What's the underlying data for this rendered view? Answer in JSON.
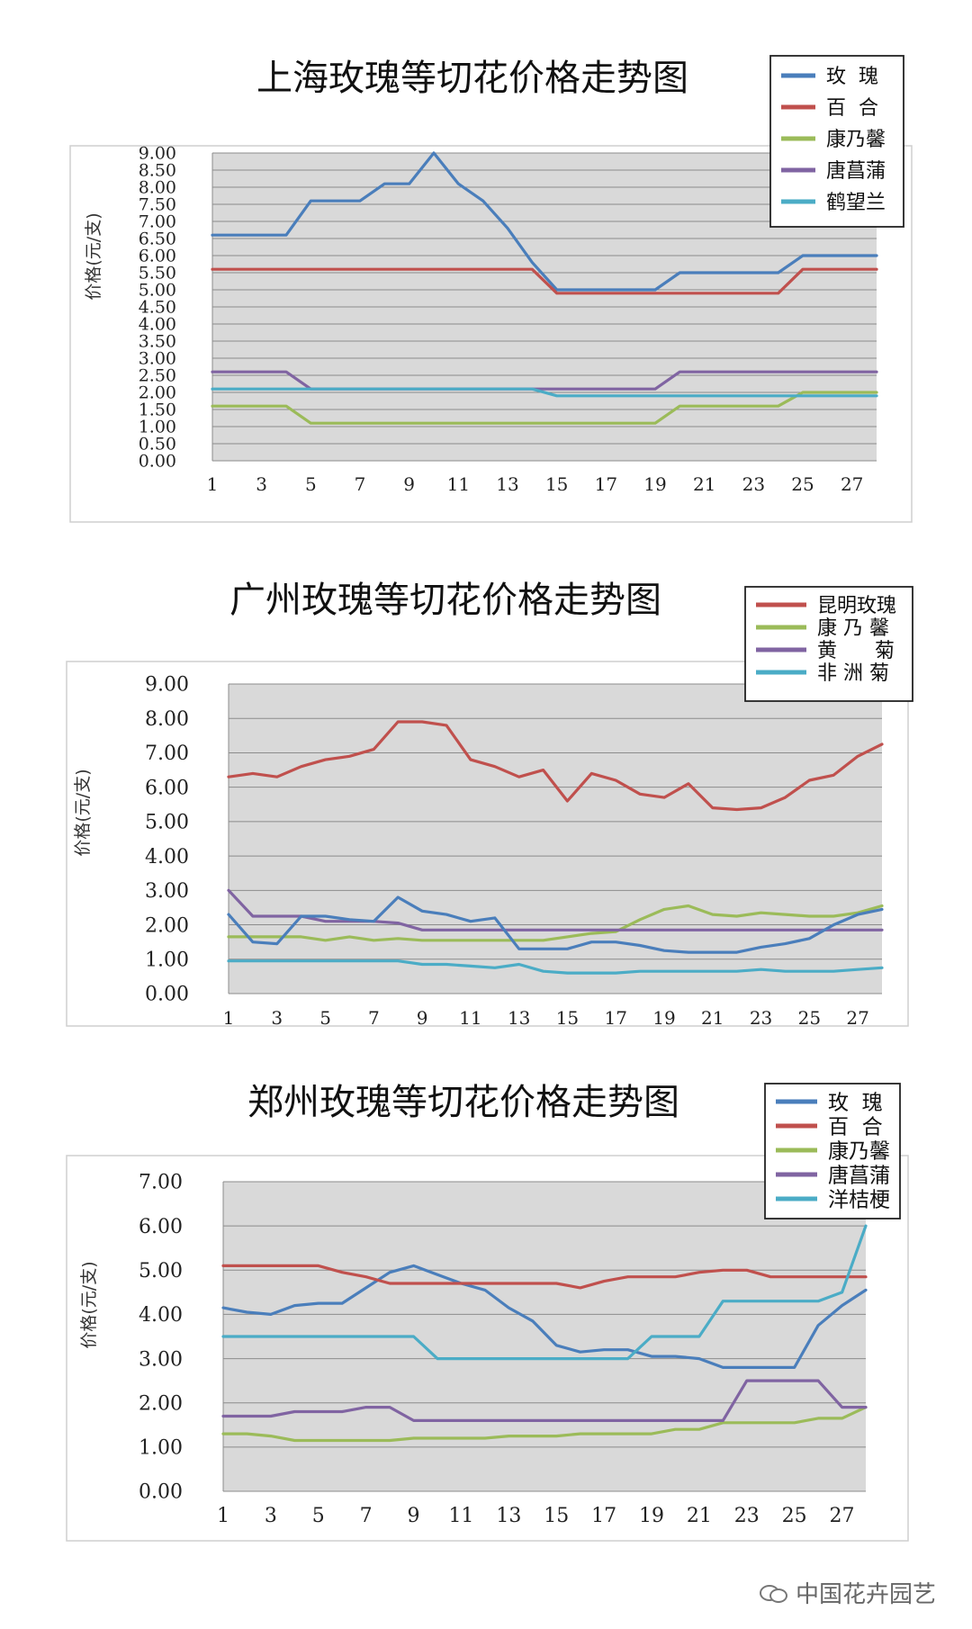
{
  "watermark": {
    "text": "中国花卉园艺",
    "icon": "wechat-icon"
  },
  "chart_data": [
    {
      "type": "line",
      "title": "上海玫瑰等切花价格走势图",
      "ylabel": "价格(元/支)",
      "xlabel": "",
      "ylim": [
        0,
        9
      ],
      "yticks": [
        "0.00",
        "0.50",
        "1.00",
        "1.50",
        "2.00",
        "2.50",
        "3.00",
        "3.50",
        "4.00",
        "4.50",
        "5.00",
        "5.50",
        "6.00",
        "6.50",
        "7.00",
        "7.50",
        "8.00",
        "8.50",
        "9.00"
      ],
      "x": [
        1,
        2,
        3,
        4,
        5,
        6,
        7,
        8,
        9,
        10,
        11,
        12,
        13,
        14,
        15,
        16,
        17,
        18,
        19,
        20,
        21,
        22,
        23,
        24,
        25,
        26,
        27,
        28
      ],
      "xticks": [
        "1",
        "3",
        "5",
        "7",
        "9",
        "11",
        "13",
        "15",
        "17",
        "19",
        "21",
        "23",
        "25",
        "27"
      ],
      "grid": true,
      "legend_position": "top-right",
      "legend_spaced": true,
      "series": [
        {
          "name": "玫  瑰",
          "color": "#4a7ebb",
          "values": [
            6.6,
            6.6,
            6.6,
            6.6,
            7.6,
            7.6,
            7.6,
            8.1,
            8.1,
            9.0,
            8.1,
            7.6,
            6.8,
            5.8,
            5.0,
            5.0,
            5.0,
            5.0,
            5.0,
            5.5,
            5.5,
            5.5,
            5.5,
            5.5,
            6.0,
            6.0,
            6.0,
            6.0
          ]
        },
        {
          "name": "百  合",
          "color": "#c0504d",
          "values": [
            5.6,
            5.6,
            5.6,
            5.6,
            5.6,
            5.6,
            5.6,
            5.6,
            5.6,
            5.6,
            5.6,
            5.6,
            5.6,
            5.6,
            4.9,
            4.9,
            4.9,
            4.9,
            4.9,
            4.9,
            4.9,
            4.9,
            4.9,
            4.9,
            5.6,
            5.6,
            5.6,
            5.6
          ]
        },
        {
          "name": "康乃馨",
          "color": "#9bbb59",
          "values": [
            1.6,
            1.6,
            1.6,
            1.6,
            1.1,
            1.1,
            1.1,
            1.1,
            1.1,
            1.1,
            1.1,
            1.1,
            1.1,
            1.1,
            1.1,
            1.1,
            1.1,
            1.1,
            1.1,
            1.6,
            1.6,
            1.6,
            1.6,
            1.6,
            2.0,
            2.0,
            2.0,
            2.0
          ]
        },
        {
          "name": "唐菖蒲",
          "color": "#8064a2",
          "values": [
            2.6,
            2.6,
            2.6,
            2.6,
            2.1,
            2.1,
            2.1,
            2.1,
            2.1,
            2.1,
            2.1,
            2.1,
            2.1,
            2.1,
            2.1,
            2.1,
            2.1,
            2.1,
            2.1,
            2.6,
            2.6,
            2.6,
            2.6,
            2.6,
            2.6,
            2.6,
            2.6,
            2.6
          ]
        },
        {
          "name": "鹤望兰",
          "color": "#4bacc6",
          "values": [
            2.1,
            2.1,
            2.1,
            2.1,
            2.1,
            2.1,
            2.1,
            2.1,
            2.1,
            2.1,
            2.1,
            2.1,
            2.1,
            2.1,
            1.9,
            1.9,
            1.9,
            1.9,
            1.9,
            1.9,
            1.9,
            1.9,
            1.9,
            1.9,
            1.9,
            1.9,
            1.9,
            1.9
          ]
        }
      ]
    },
    {
      "type": "line",
      "title": "广州玫瑰等切花价格走势图",
      "ylabel": "价格(元/支)",
      "xlabel": "",
      "ylim": [
        0,
        9
      ],
      "yticks": [
        "0.00",
        "1.00",
        "2.00",
        "3.00",
        "4.00",
        "5.00",
        "6.00",
        "7.00",
        "8.00",
        "9.00"
      ],
      "x": [
        1,
        2,
        3,
        4,
        5,
        6,
        7,
        8,
        9,
        10,
        11,
        12,
        13,
        14,
        15,
        16,
        17,
        18,
        19,
        20,
        21,
        22,
        23,
        24,
        25,
        26,
        27,
        28
      ],
      "xticks": [
        "1",
        "3",
        "5",
        "7",
        "9",
        "11",
        "13",
        "15",
        "17",
        "19",
        "21",
        "23",
        "25",
        "27"
      ],
      "grid": true,
      "legend_position": "top-right",
      "legend_spaced": false,
      "series": [
        {
          "name": "昆明玫瑰",
          "color": "#c0504d",
          "values": [
            6.3,
            6.4,
            6.3,
            6.6,
            6.8,
            6.9,
            7.1,
            7.9,
            7.9,
            7.8,
            6.8,
            6.6,
            6.3,
            6.5,
            5.6,
            6.4,
            6.2,
            5.8,
            5.7,
            6.1,
            5.4,
            5.35,
            5.4,
            5.7,
            6.2,
            6.35,
            6.9,
            7.25
          ]
        },
        {
          "name": "康 乃 馨",
          "color": "#9bbb59",
          "values": [
            1.65,
            1.65,
            1.65,
            1.65,
            1.55,
            1.65,
            1.55,
            1.6,
            1.55,
            1.55,
            1.55,
            1.55,
            1.55,
            1.55,
            1.65,
            1.75,
            1.8,
            2.15,
            2.45,
            2.55,
            2.3,
            2.25,
            2.35,
            2.3,
            2.25,
            2.25,
            2.35,
            2.55
          ]
        },
        {
          "name": "黄      菊",
          "color": "#8064a2",
          "values": [
            3.0,
            2.25,
            2.25,
            2.25,
            2.1,
            2.1,
            2.1,
            2.05,
            1.85,
            1.85,
            1.85,
            1.85,
            1.85,
            1.85,
            1.85,
            1.85,
            1.85,
            1.85,
            1.85,
            1.85,
            1.85,
            1.85,
            1.85,
            1.85,
            1.85,
            1.85,
            1.85,
            1.85
          ]
        },
        {
          "name": "非 洲 菊",
          "color": "#4bacc6",
          "values": [
            0.95,
            0.95,
            0.95,
            0.95,
            0.95,
            0.95,
            0.95,
            0.95,
            0.85,
            0.85,
            0.8,
            0.75,
            0.85,
            0.65,
            0.6,
            0.6,
            0.6,
            0.65,
            0.65,
            0.65,
            0.65,
            0.65,
            0.7,
            0.65,
            0.65,
            0.65,
            0.7,
            0.75
          ]
        },
        {
          "name": "",
          "color": "#4a7ebb",
          "values": [
            2.3,
            1.5,
            1.45,
            2.25,
            2.25,
            2.15,
            2.1,
            2.8,
            2.4,
            2.3,
            2.1,
            2.2,
            1.3,
            1.3,
            1.3,
            1.5,
            1.5,
            1.4,
            1.25,
            1.2,
            1.2,
            1.2,
            1.35,
            1.45,
            1.6,
            2.0,
            2.3,
            2.45
          ]
        }
      ]
    },
    {
      "type": "line",
      "title": "郑州玫瑰等切花价格走势图",
      "ylabel": "价格(元/支)",
      "xlabel": "",
      "ylim": [
        0,
        7
      ],
      "yticks": [
        "0.00",
        "1.00",
        "2.00",
        "3.00",
        "4.00",
        "5.00",
        "6.00",
        "7.00"
      ],
      "x": [
        1,
        2,
        3,
        4,
        5,
        6,
        7,
        8,
        9,
        10,
        11,
        12,
        13,
        14,
        15,
        16,
        17,
        18,
        19,
        20,
        21,
        22,
        23,
        24,
        25,
        26,
        27,
        28
      ],
      "xticks": [
        "1",
        "3",
        "5",
        "7",
        "9",
        "11",
        "13",
        "15",
        "17",
        "19",
        "21",
        "23",
        "25",
        "27"
      ],
      "grid": true,
      "legend_position": "top-right",
      "legend_spaced": true,
      "series": [
        {
          "name": "玫  瑰",
          "color": "#4a7ebb",
          "values": [
            4.15,
            4.05,
            4.0,
            4.2,
            4.25,
            4.25,
            4.6,
            4.95,
            5.1,
            4.9,
            4.7,
            4.55,
            4.15,
            3.85,
            3.3,
            3.15,
            3.2,
            3.2,
            3.05,
            3.05,
            3.0,
            2.8,
            2.8,
            2.8,
            2.8,
            3.75,
            4.2,
            4.55
          ]
        },
        {
          "name": "百  合",
          "color": "#c0504d",
          "values": [
            5.1,
            5.1,
            5.1,
            5.1,
            5.1,
            4.95,
            4.85,
            4.7,
            4.7,
            4.7,
            4.7,
            4.7,
            4.7,
            4.7,
            4.7,
            4.6,
            4.75,
            4.85,
            4.85,
            4.85,
            4.95,
            5.0,
            5.0,
            4.85,
            4.85,
            4.85,
            4.85,
            4.85
          ]
        },
        {
          "name": "康乃馨",
          "color": "#9bbb59",
          "values": [
            1.3,
            1.3,
            1.25,
            1.15,
            1.15,
            1.15,
            1.15,
            1.15,
            1.2,
            1.2,
            1.2,
            1.2,
            1.25,
            1.25,
            1.25,
            1.3,
            1.3,
            1.3,
            1.3,
            1.4,
            1.4,
            1.55,
            1.55,
            1.55,
            1.55,
            1.65,
            1.65,
            1.9
          ]
        },
        {
          "name": "唐菖蒲",
          "color": "#8064a2",
          "values": [
            1.7,
            1.7,
            1.7,
            1.8,
            1.8,
            1.8,
            1.9,
            1.9,
            1.6,
            1.6,
            1.6,
            1.6,
            1.6,
            1.6,
            1.6,
            1.6,
            1.6,
            1.6,
            1.6,
            1.6,
            1.6,
            1.6,
            2.5,
            2.5,
            2.5,
            2.5,
            1.9,
            1.9
          ]
        },
        {
          "name": "洋桔梗",
          "color": "#4bacc6",
          "values": [
            3.5,
            3.5,
            3.5,
            3.5,
            3.5,
            3.5,
            3.5,
            3.5,
            3.5,
            3.0,
            3.0,
            3.0,
            3.0,
            3.0,
            3.0,
            3.0,
            3.0,
            3.0,
            3.5,
            3.5,
            3.5,
            4.3,
            4.3,
            4.3,
            4.3,
            4.3,
            4.5,
            6.0
          ]
        }
      ]
    }
  ]
}
